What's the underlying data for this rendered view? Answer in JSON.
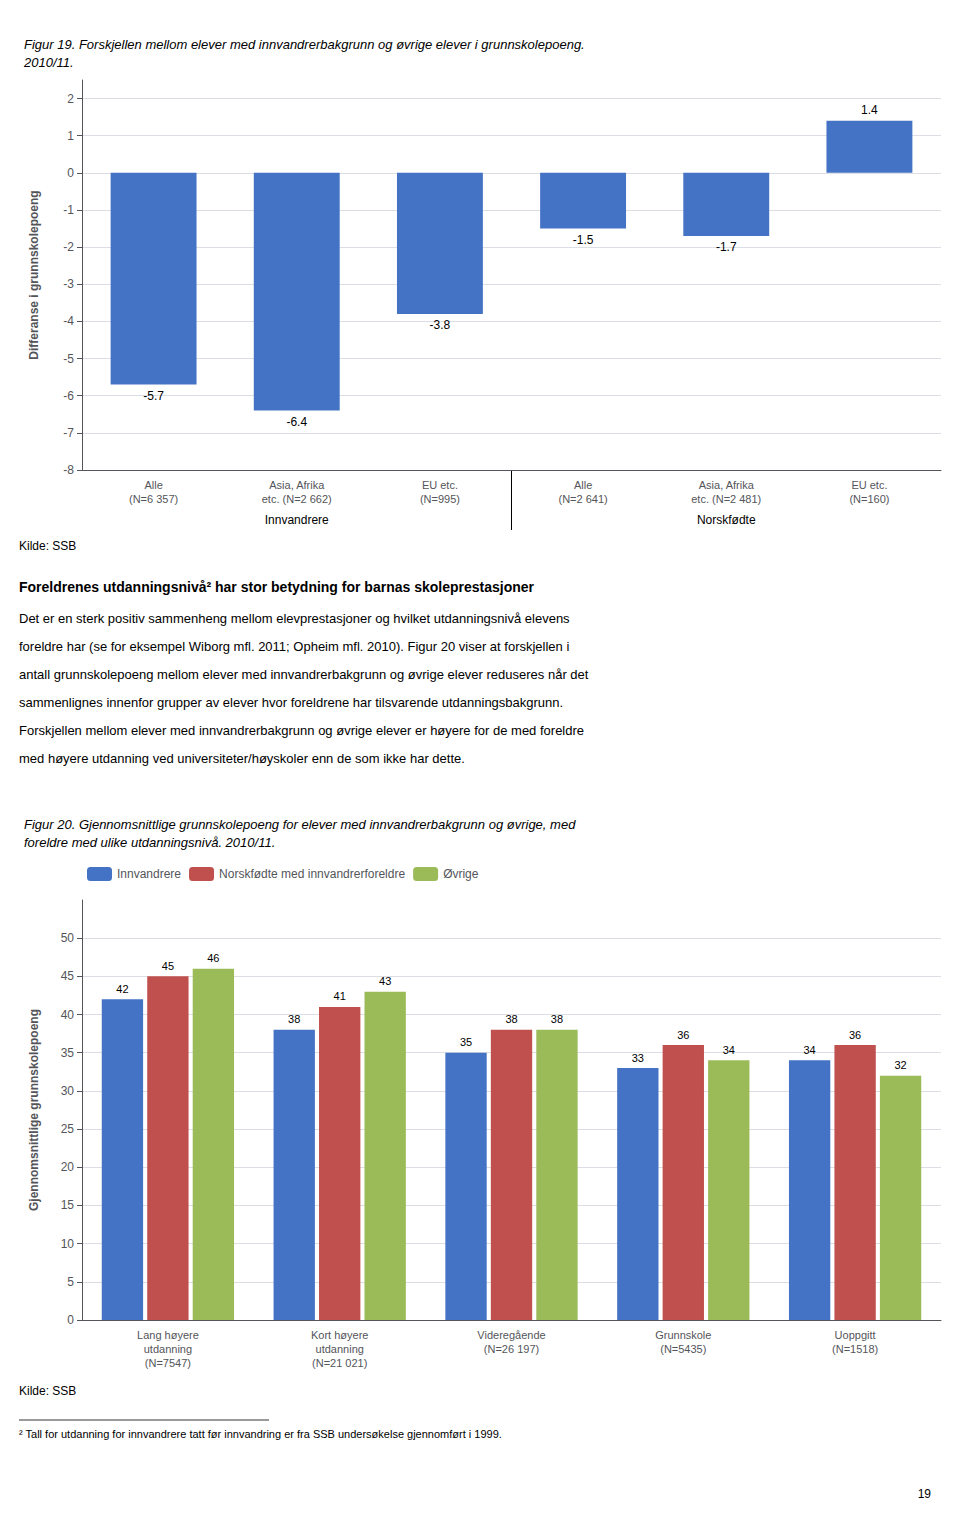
{
  "chart_data": [
    {
      "type": "bar",
      "title": "Figur 19. Forskjellen mellom elever med innvandrerbakgrunn og øvrige elever i grunnskolepoeng.\n2010/11.",
      "categories": [
        "Alle\n(N=6 357)",
        "Asia, Afrika\netc. (N=2 662)",
        "EU etc.\n(N=995)",
        "Alle\n(N=2 641)",
        "Asia, Afrika\netc. (N=2 481)",
        "EU etc.\n(N=160)"
      ],
      "values": [
        -5.7,
        -6.4,
        -3.8,
        -1.5,
        -1.7,
        1.4
      ],
      "color": "#4472C4",
      "ylabel": "Differanse i grunnskolepoeng",
      "ylim": [
        -8,
        2.5
      ],
      "yticks": [
        -8,
        -7,
        -6,
        -5,
        -4,
        -3,
        -2,
        -1,
        0,
        1,
        2
      ],
      "grid": true,
      "data_labels": true,
      "annotations": [
        "Innvandrere",
        "Norskfødte",
        "Kilde: SSB",
        "Foreldrenes utdanningsnivå² har stor betydning for barnas skoleprestasjoner",
        "Det er en sterk positiv sammenheng mellom elevprestasjoner og hvilket utdanningsnivå elevens",
        "foreldre har (se for eksempel Wiborg mfl. 2011; Opheim mfl. 2010). Figur 20 viser at forskjellen i",
        "antall grunnskolepoeng mellom elever med innvandrerbakgrunn og øvrige elever reduseres når det",
        "sammenlignes innenfor grupper av elever hvor foreldrene har tilsvarende utdanningsbakgrunn.",
        "Forskjellen mellom elever med innvandrerbakgrunn og øvrige elever er høyere for de med foreldre",
        "med høyere utdanning ved universiteter/høyskoler enn de som ikke har dette."
      ]
    },
    {
      "type": "bar",
      "title": "Figur 20. Gjennomsnittlige grunnskolepoeng for elever med innvandrerbakgrunn og øvrige, med\nforeldre med ulike utdanningsnivå. 2010/11.",
      "categories": [
        "Lang høyere\nutdanning\n(N=7547)",
        "Kort høyere\nutdanning\n(N=21 021)",
        "Videregående\n(N=26 197)",
        "Grunnskole\n(N=5435)",
        "Uoppgitt\n(N=1518)"
      ],
      "series": [
        {
          "name": "Innvandrere",
          "color": "#4472C4",
          "values": [
            42,
            38,
            35,
            33,
            34
          ]
        },
        {
          "name": "Norskfødte med innvandrerforeldre",
          "color": "#C0504D",
          "values": [
            45,
            41,
            38,
            36,
            36
          ]
        },
        {
          "name": "Øvrige",
          "color": "#9BBB59",
          "values": [
            46,
            43,
            38,
            34,
            32
          ]
        }
      ],
      "ylabel": "Gjennomsnittlige grunnskolepoeng",
      "ylim": [
        0,
        55
      ],
      "yticks": [
        0,
        5,
        10,
        15,
        20,
        25,
        30,
        35,
        40,
        45,
        50
      ],
      "grid": true,
      "legend": "upper left",
      "data_labels": true,
      "annotations": [
        "Kilde: SSB",
        "² Tall for utdanning for innvandrere tatt før innvandring er fra SSB undersøkelse gjennomført i 1999.",
        "19"
      ]
    }
  ]
}
